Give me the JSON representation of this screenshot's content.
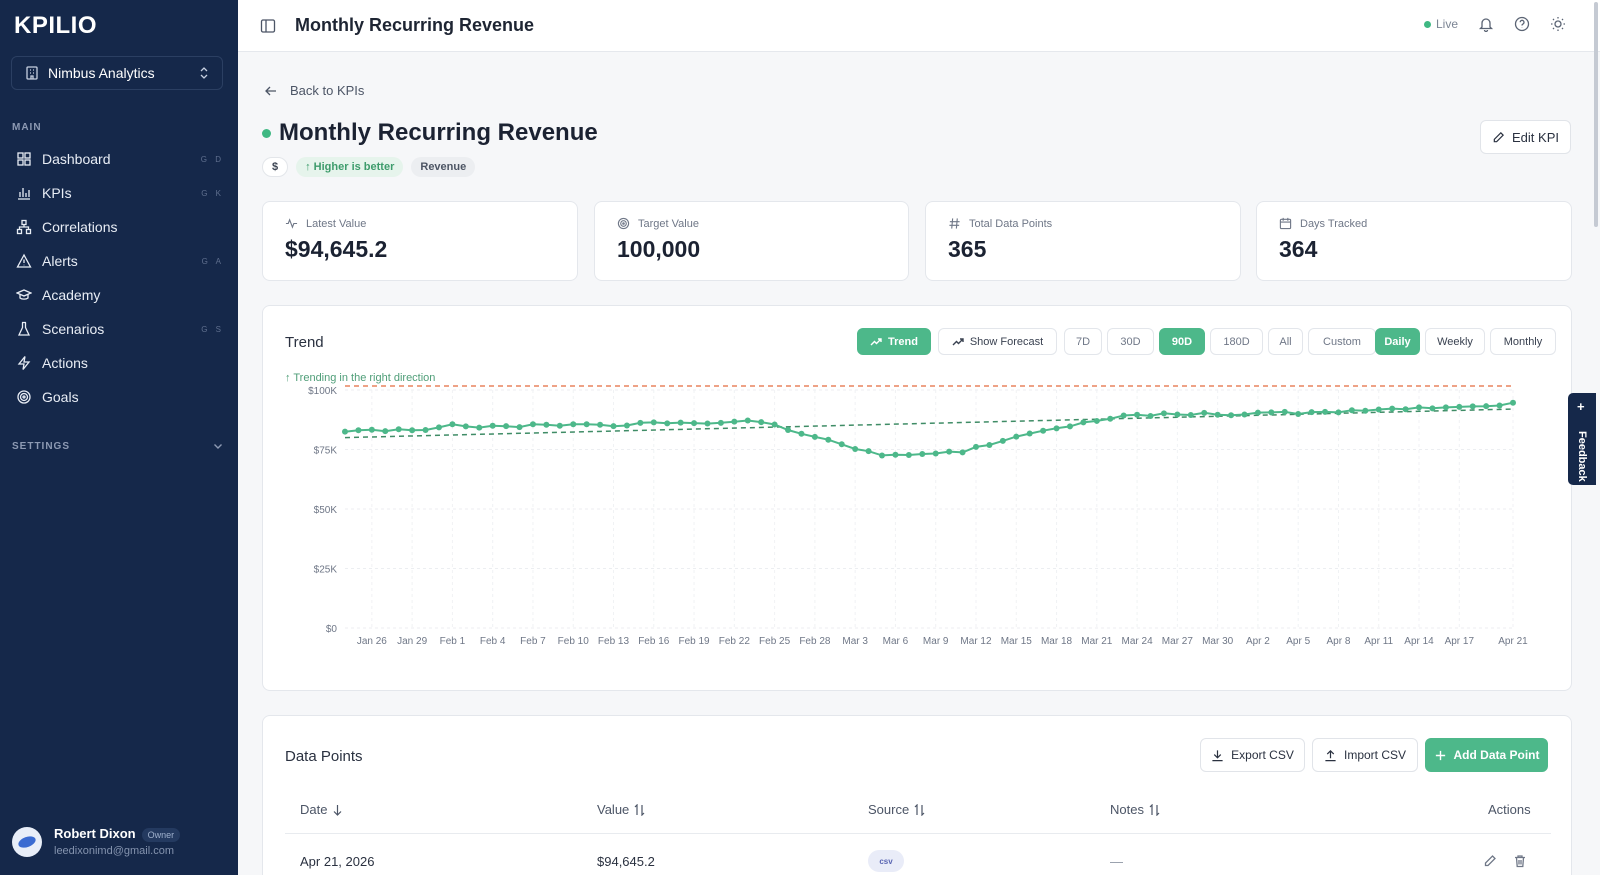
{
  "app": {
    "logo": "KPILIO"
  },
  "sidebar": {
    "org_name": "Nimbus Analytics",
    "main_label": "MAIN",
    "items": [
      {
        "label": "Dashboard",
        "icon": "grid-icon",
        "shortcut": "G D"
      },
      {
        "label": "KPIs",
        "icon": "bar-chart-icon",
        "shortcut": "G K"
      },
      {
        "label": "Correlations",
        "icon": "network-icon",
        "shortcut": ""
      },
      {
        "label": "Alerts",
        "icon": "warning-icon",
        "shortcut": "G A"
      },
      {
        "label": "Academy",
        "icon": "graduation-cap-icon",
        "shortcut": ""
      },
      {
        "label": "Scenarios",
        "icon": "flask-icon",
        "shortcut": "G S"
      },
      {
        "label": "Actions",
        "icon": "bolt-icon",
        "shortcut": ""
      },
      {
        "label": "Goals",
        "icon": "target-icon",
        "shortcut": ""
      }
    ],
    "settings_label": "SETTINGS",
    "user": {
      "name": "Robert Dixon",
      "role": "Owner",
      "email": "leedixonimd@gmail.com"
    }
  },
  "topbar": {
    "title": "Monthly Recurring Revenue",
    "status": "Live"
  },
  "page": {
    "back_label": "Back to KPIs",
    "title": "Monthly Recurring Revenue",
    "tags": {
      "unit": "$",
      "direction": "↑ Higher is better",
      "category": "Revenue"
    },
    "edit_label": "Edit KPI"
  },
  "stats": [
    {
      "label": "Latest Value",
      "value": "$94,645.2"
    },
    {
      "label": "Target Value",
      "value": "100,000"
    },
    {
      "label": "Total Data Points",
      "value": "365"
    },
    {
      "label": "Days Tracked",
      "value": "364"
    }
  ],
  "trend": {
    "title": "Trend",
    "trend_button": "Trend",
    "forecast_button": "Show Forecast",
    "ranges": [
      "7D",
      "30D",
      "90D",
      "180D",
      "All",
      "Custom"
    ],
    "active_range": "90D",
    "granularity": [
      "Daily",
      "Weekly",
      "Monthly"
    ],
    "active_granularity": "Daily",
    "note": "↑ Trending in the right direction"
  },
  "chart_data": {
    "type": "line",
    "x": [
      "Jan 24",
      "Jan 25",
      "Jan 26",
      "Jan 27",
      "Jan 28",
      "Jan 29",
      "Jan 30",
      "Jan 31",
      "Feb 1",
      "Feb 2",
      "Feb 3",
      "Feb 4",
      "Feb 5",
      "Feb 6",
      "Feb 7",
      "Feb 8",
      "Feb 9",
      "Feb 10",
      "Feb 11",
      "Feb 12",
      "Feb 13",
      "Feb 14",
      "Feb 15",
      "Feb 16",
      "Feb 17",
      "Feb 18",
      "Feb 19",
      "Feb 20",
      "Feb 21",
      "Feb 22",
      "Feb 23",
      "Feb 24",
      "Feb 25",
      "Feb 26",
      "Feb 27",
      "Feb 28",
      "Mar 1",
      "Mar 2",
      "Mar 3",
      "Mar 4",
      "Mar 5",
      "Mar 6",
      "Mar 7",
      "Mar 8",
      "Mar 9",
      "Mar 10",
      "Mar 11",
      "Mar 12",
      "Mar 13",
      "Mar 14",
      "Mar 15",
      "Mar 16",
      "Mar 17",
      "Mar 18",
      "Mar 19",
      "Mar 20",
      "Mar 21",
      "Mar 22",
      "Mar 23",
      "Mar 24",
      "Mar 25",
      "Mar 26",
      "Mar 27",
      "Mar 28",
      "Mar 29",
      "Mar 30",
      "Mar 31",
      "Apr 1",
      "Apr 2",
      "Apr 3",
      "Apr 4",
      "Apr 5",
      "Apr 6",
      "Apr 7",
      "Apr 8",
      "Apr 9",
      "Apr 10",
      "Apr 11",
      "Apr 12",
      "Apr 13",
      "Apr 14",
      "Apr 15",
      "Apr 16",
      "Apr 17",
      "Apr 18",
      "Apr 19",
      "Apr 20",
      "Apr 21"
    ],
    "series": [
      {
        "name": "",
        "values": [
          82500,
          83100,
          83300,
          82700,
          83500,
          83100,
          83200,
          84300,
          85600,
          84700,
          84200,
          85000,
          84800,
          84400,
          85600,
          85400,
          85000,
          85600,
          85600,
          85400,
          84800,
          85100,
          86200,
          86400,
          86000,
          86300,
          86100,
          85900,
          86200,
          86700,
          87200,
          86500,
          85500,
          83200,
          81600,
          80300,
          79100,
          77200,
          75200,
          74300,
          72500,
          72800,
          72700,
          73100,
          73300,
          74100,
          73800,
          76100,
          76900,
          78600,
          80400,
          81700,
          82900,
          83900,
          84700,
          86400,
          87000,
          87900,
          89300,
          89600,
          89100,
          90200,
          89700,
          89500,
          90400,
          89600,
          89400,
          89700,
          90500,
          90600,
          90800,
          89900,
          90700,
          90800,
          90600,
          91500,
          91300,
          91800,
          92200,
          91900,
          92700,
          92300,
          92700,
          92900,
          93100,
          93200,
          93500,
          94645.2
        ]
      }
    ],
    "trend_line": {
      "start": 80000,
      "end": 92000
    },
    "target": 100000,
    "ylim": [
      0,
      100000
    ],
    "yticks": [
      "$0",
      "$25K",
      "$50K",
      "$75K",
      "$100K"
    ],
    "xticks": [
      "Jan 26",
      "Jan 29",
      "Feb 1",
      "Feb 4",
      "Feb 7",
      "Feb 10",
      "Feb 13",
      "Feb 16",
      "Feb 19",
      "Feb 22",
      "Feb 25",
      "Feb 28",
      "Mar 3",
      "Mar 6",
      "Mar 9",
      "Mar 12",
      "Mar 15",
      "Mar 18",
      "Mar 21",
      "Mar 24",
      "Mar 27",
      "Mar 30",
      "Apr 2",
      "Apr 5",
      "Apr 8",
      "Apr 11",
      "Apr 14",
      "Apr 17",
      "Apr 21"
    ],
    "colors": {
      "series": "#4db88a",
      "trend": "#3f8c66",
      "target": "#e8845e"
    },
    "grid": true
  },
  "feedback": {
    "label": "Feedback"
  },
  "data_points": {
    "title": "Data Points",
    "export_label": "Export CSV",
    "import_label": "Import CSV",
    "add_label": "Add Data Point",
    "columns": [
      "Date",
      "Value",
      "Source",
      "Notes",
      "Actions"
    ],
    "rows": [
      {
        "date": "Apr 21, 2026",
        "value": "$94,645.2",
        "source": "csv",
        "notes": "—"
      }
    ]
  }
}
